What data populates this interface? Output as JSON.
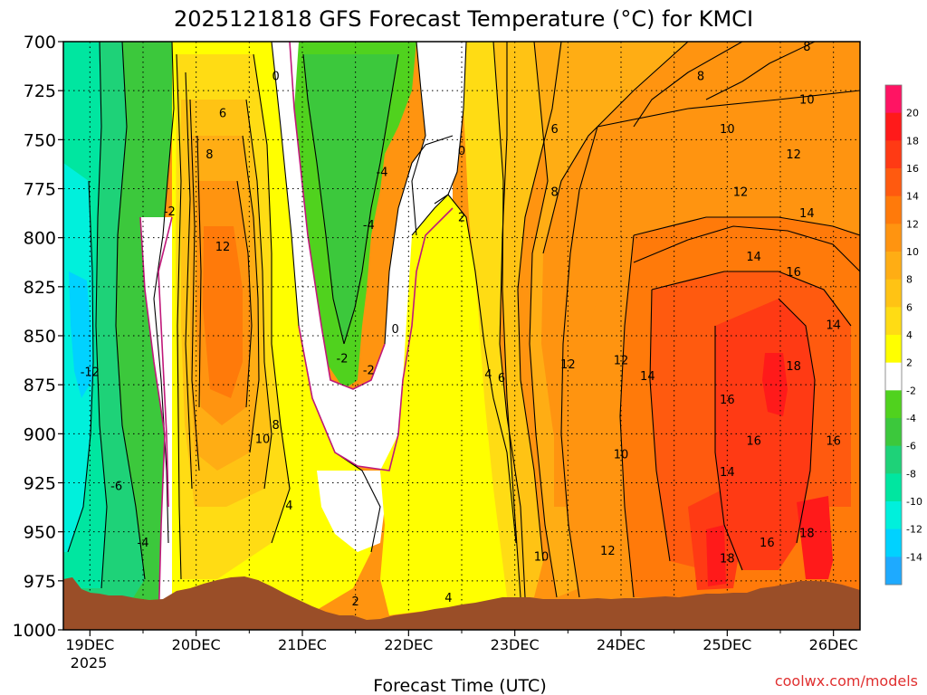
{
  "chart_data": {
    "type": "heatmap",
    "title": "2025121818 GFS Forecast Temperature (°C) for KMCI",
    "xlabel": "Forecast Time (UTC)",
    "ylabel": "",
    "x_ticks": [
      "19DEC",
      "20DEC",
      "21DEC",
      "22DEC",
      "23DEC",
      "24DEC",
      "25DEC",
      "26DEC"
    ],
    "x_year_label": "2025",
    "y_ticks": [
      700,
      725,
      750,
      775,
      800,
      825,
      850,
      875,
      900,
      925,
      950,
      975,
      1000
    ],
    "y_range_hPa": [
      1000,
      700
    ],
    "x_range_days": [
      "18DEC 18Z",
      "26DEC 06Z"
    ],
    "grid": true,
    "colorbar_location": "right",
    "colorbar_labels": [
      "20",
      "18",
      "16",
      "14",
      "12",
      "10",
      "8",
      "6",
      "4",
      "2",
      "-2",
      "-4",
      "-6",
      "-8",
      "-10",
      "-12",
      "-14"
    ],
    "color_bins": [
      {
        "range": [
          20,
          22
        ],
        "color": "#ff1463"
      },
      {
        "range": [
          18,
          20
        ],
        "color": "#ff1a1a"
      },
      {
        "range": [
          16,
          18
        ],
        "color": "#ff3a14"
      },
      {
        "range": [
          14,
          16
        ],
        "color": "#ff5a0f"
      },
      {
        "range": [
          12,
          14
        ],
        "color": "#ff7a0a"
      },
      {
        "range": [
          10,
          12
        ],
        "color": "#ff9410"
      },
      {
        "range": [
          8,
          10
        ],
        "color": "#ffad14"
      },
      {
        "range": [
          6,
          8
        ],
        "color": "#ffc314"
      },
      {
        "range": [
          4,
          6
        ],
        "color": "#ffdc14"
      },
      {
        "range": [
          2,
          4
        ],
        "color": "#ffff00"
      },
      {
        "range": [
          -2,
          2
        ],
        "color": "#ffffff"
      },
      {
        "range": [
          -4,
          -2
        ],
        "color": "#50d21e"
      },
      {
        "range": [
          -6,
          -4
        ],
        "color": "#3cc83c"
      },
      {
        "range": [
          -8,
          -6
        ],
        "color": "#1ed278"
      },
      {
        "range": [
          -10,
          -8
        ],
        "color": "#00e6a0"
      },
      {
        "range": [
          -12,
          -10
        ],
        "color": "#00f0dc"
      },
      {
        "range": [
          -14,
          -12
        ],
        "color": "#00d2ff"
      },
      {
        "range": [
          -16,
          -14
        ],
        "color": "#1eaaff"
      }
    ],
    "contour_labels": [
      {
        "text": "0",
        "time": "20DEC 18Z",
        "p": 718
      },
      {
        "text": "6",
        "time": "20DEC 06Z",
        "p": 737
      },
      {
        "text": "8",
        "time": "20DEC 03Z",
        "p": 758
      },
      {
        "text": "12",
        "time": "20DEC 06Z",
        "p": 805
      },
      {
        "text": "8",
        "time": "20DEC 18Z",
        "p": 896
      },
      {
        "text": "10",
        "time": "20DEC 15Z",
        "p": 903
      },
      {
        "text": "4",
        "time": "20DEC 21Z",
        "p": 937
      },
      {
        "text": "2",
        "time": "21DEC 12Z",
        "p": 986
      },
      {
        "text": "-2",
        "time": "19DEC 18Z",
        "p": 787
      },
      {
        "text": "-12",
        "time": "19DEC 00Z",
        "p": 869
      },
      {
        "text": "-6",
        "time": "19DEC 06Z",
        "p": 927
      },
      {
        "text": "-4",
        "time": "19DEC 12Z",
        "p": 956
      },
      {
        "text": "-4",
        "time": "21DEC 18Z",
        "p": 767
      },
      {
        "text": "-4",
        "time": "21DEC 15Z",
        "p": 794
      },
      {
        "text": "0",
        "time": "21DEC 21Z",
        "p": 847
      },
      {
        "text": "-2",
        "time": "21DEC 09Z",
        "p": 862
      },
      {
        "text": "-2",
        "time": "21DEC 15Z",
        "p": 868
      },
      {
        "text": "0",
        "time": "22DEC 12Z",
        "p": 756
      },
      {
        "text": "2",
        "time": "22DEC 12Z",
        "p": 790
      },
      {
        "text": "4",
        "time": "22DEC 18Z",
        "p": 870
      },
      {
        "text": "6",
        "time": "22DEC 21Z",
        "p": 872
      },
      {
        "text": "4",
        "time": "22DEC 09Z",
        "p": 984
      },
      {
        "text": "6",
        "time": "23DEC 09Z",
        "p": 745
      },
      {
        "text": "8",
        "time": "23DEC 09Z",
        "p": 777
      },
      {
        "text": "8",
        "time": "24DEC 18Z",
        "p": 718
      },
      {
        "text": "10",
        "time": "25DEC 00Z",
        "p": 745
      },
      {
        "text": "12",
        "time": "25DEC 03Z",
        "p": 777
      },
      {
        "text": "14",
        "time": "25DEC 06Z",
        "p": 810
      },
      {
        "text": "12",
        "time": "23DEC 12Z",
        "p": 865
      },
      {
        "text": "12",
        "time": "24DEC 00Z",
        "p": 863
      },
      {
        "text": "14",
        "time": "24DEC 06Z",
        "p": 871
      },
      {
        "text": "10",
        "time": "24DEC 00Z",
        "p": 911
      },
      {
        "text": "12",
        "time": "23DEC 21Z",
        "p": 960
      },
      {
        "text": "10",
        "time": "23DEC 06Z",
        "p": 963
      },
      {
        "text": "16",
        "time": "25DEC 00Z",
        "p": 883
      },
      {
        "text": "16",
        "time": "25DEC 06Z",
        "p": 904
      },
      {
        "text": "14",
        "time": "25DEC 00Z",
        "p": 920
      },
      {
        "text": "18",
        "time": "25DEC 00Z",
        "p": 964
      },
      {
        "text": "16",
        "time": "25DEC 09Z",
        "p": 956
      },
      {
        "text": "18",
        "time": "25DEC 18Z",
        "p": 951
      },
      {
        "text": "16",
        "time": "25DEC 15Z",
        "p": 818
      },
      {
        "text": "18",
        "time": "25DEC 15Z",
        "p": 866
      },
      {
        "text": "16",
        "time": "26DEC 00Z",
        "p": 904
      },
      {
        "text": "14",
        "time": "26DEC 00Z",
        "p": 845
      },
      {
        "text": "14",
        "time": "25DEC 18Z",
        "p": 788
      },
      {
        "text": "12",
        "time": "25DEC 15Z",
        "p": 758
      },
      {
        "text": "10",
        "time": "25DEC 18Z",
        "p": 730
      },
      {
        "text": "8",
        "time": "25DEC 18Z",
        "p": 703
      }
    ]
  },
  "credit": "coolwx.com/models"
}
